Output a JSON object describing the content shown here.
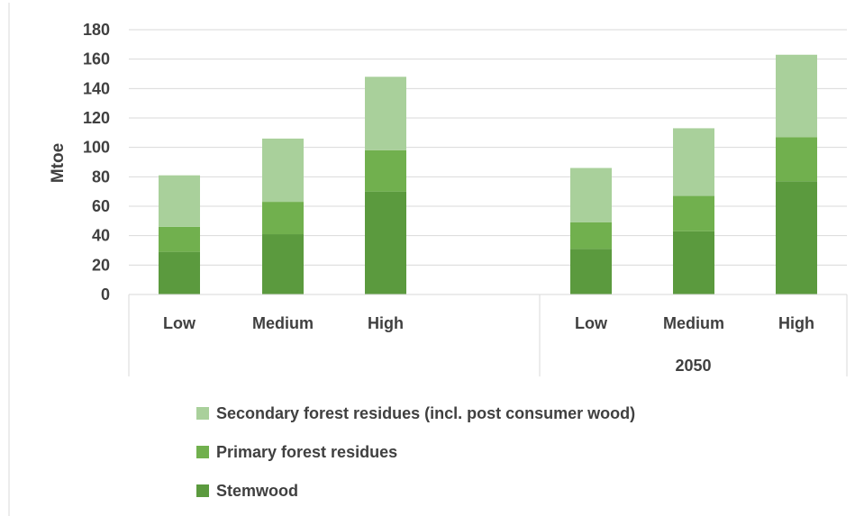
{
  "chart_data": {
    "type": "bar",
    "stacked": true,
    "ylabel": "Mtoe",
    "ylim": [
      0,
      180
    ],
    "yticks": [
      0,
      20,
      40,
      60,
      80,
      100,
      120,
      140,
      160,
      180
    ],
    "grid": true,
    "groups": [
      {
        "label": "",
        "categories": [
          "Low",
          "Medium",
          "High"
        ]
      },
      {
        "label": "2050",
        "categories": [
          "Low",
          "Medium",
          "High"
        ]
      }
    ],
    "series": [
      {
        "name": "Stemwood",
        "color": "#5b9a3e",
        "values": [
          29,
          41,
          70,
          31,
          43,
          77
        ]
      },
      {
        "name": "Primary forest residues",
        "color": "#71b04e",
        "values": [
          17,
          22,
          28,
          18,
          24,
          30
        ]
      },
      {
        "name": "Secondary forest residues (incl. post consumer wood)",
        "color": "#a9d09b",
        "values": [
          35,
          43,
          50,
          37,
          46,
          56
        ]
      }
    ],
    "legend": {
      "position": "bottom",
      "order": [
        "Secondary forest residues (incl. post consumer wood)",
        "Primary forest residues",
        "Stemwood"
      ]
    }
  }
}
